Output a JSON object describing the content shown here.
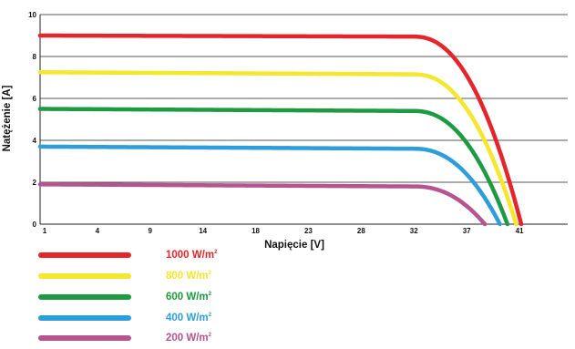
{
  "chart_data": {
    "type": "line",
    "xlabel": "Napięcie [V]",
    "ylabel": "Natężenie [A]",
    "xlim": [
      0,
      42
    ],
    "ylim": [
      0,
      10
    ],
    "x_tick_labels": [
      "1",
      "4",
      "9",
      "14",
      "18",
      "23",
      "28",
      "32",
      "37",
      "41"
    ],
    "y_ticks": [
      0,
      2,
      4,
      6,
      8,
      10
    ],
    "grid": "horizontal",
    "legend_position": "bottom-left",
    "series": [
      {
        "name": "1000 W/m",
        "color": "#e4252b",
        "isc": 9.0,
        "ismp": 8.95,
        "vknee": 29.8,
        "voc": 38.3
      },
      {
        "name": "800 W/m",
        "color": "#f6e62d",
        "isc": 7.25,
        "ismp": 7.15,
        "vknee": 29.8,
        "voc": 37.9
      },
      {
        "name": "600 W/m",
        "color": "#1e9a42",
        "isc": 5.5,
        "ismp": 5.4,
        "vknee": 29.8,
        "voc": 37.2
      },
      {
        "name": "400 W/m",
        "color": "#2e9ddb",
        "isc": 3.7,
        "ismp": 3.6,
        "vknee": 29.8,
        "voc": 36.6
      },
      {
        "name": "200 W/m",
        "color": "#b5548f",
        "isc": 1.9,
        "ismp": 1.8,
        "vknee": 29.8,
        "voc": 35.4
      }
    ],
    "legend_superscript": "2"
  }
}
